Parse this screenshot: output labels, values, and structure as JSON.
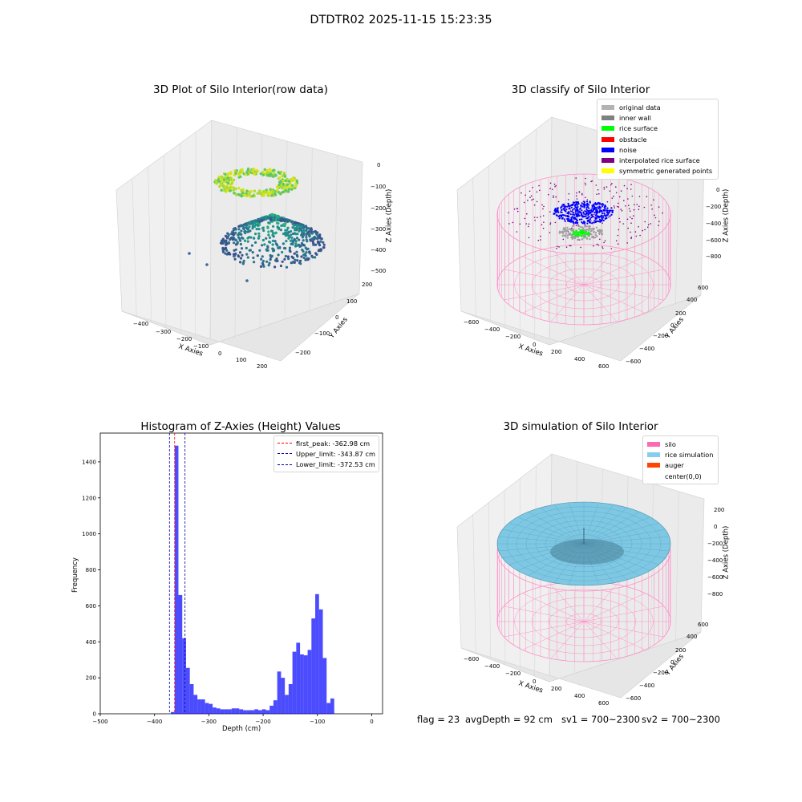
{
  "figure": {
    "suptitle": "DTDTR02 2025-11-15 15:23:35",
    "footer": {
      "flag": "flag = 23",
      "avg_depth": "avgDepth = 92 cm",
      "sv1": "sv1 = 700~2300",
      "sv2": "sv2 = 700~2300"
    }
  },
  "chart_data": [
    {
      "type": "scatter",
      "projection": "3d",
      "title": "3D Plot of Silo Interior(row data)",
      "xlabel": "X Axies",
      "ylabel": "Y Axies",
      "zlabel": "Z Axies (Depth)",
      "x_ticks": [
        "−400",
        "−300",
        "−200",
        "−100",
        "0",
        "100",
        "200"
      ],
      "y_ticks": [
        "−200",
        "−100",
        "0",
        "100",
        "200"
      ],
      "z_ticks": [
        "0",
        "−100",
        "−200",
        "−300",
        "−400",
        "−500"
      ],
      "xlim": [
        -450,
        230
      ],
      "ylim": [
        -230,
        230
      ],
      "zlim": [
        -520,
        10
      ],
      "colormap": "viridis",
      "grid": true
    },
    {
      "type": "scatter",
      "projection": "3d",
      "title": "3D classify of Silo Interior",
      "xlabel": "X Axies",
      "ylabel": "Y Axies",
      "zlabel": "Z Axies (Depth)",
      "x_ticks": [
        "−600",
        "−400",
        "−200",
        "0",
        "200",
        "400",
        "600"
      ],
      "y_ticks": [
        "−600",
        "−400",
        "−200",
        "0",
        "200",
        "400",
        "600"
      ],
      "z_ticks": [
        "0",
        "−200",
        "−400",
        "−600",
        "−800"
      ],
      "legend_position": "top-right",
      "legend": [
        {
          "label": "original data",
          "color": "#b3b3b3"
        },
        {
          "label": "inner wall",
          "color": "#808080"
        },
        {
          "label": "rice surface",
          "color": "#00ff00"
        },
        {
          "label": "obstacle",
          "color": "#ff0000"
        },
        {
          "label": "noise",
          "color": "#0000ff"
        },
        {
          "label": "interpolated rice surface",
          "color": "#800080"
        },
        {
          "label": "symmetric generated points",
          "color": "#ffff00"
        }
      ],
      "grid": true
    },
    {
      "type": "bar",
      "title": "Histogram of Z-Axies (Height) Values",
      "xlabel": "Depth (cm)",
      "ylabel": "Frequency",
      "xlim": [
        -500,
        20
      ],
      "ylim": [
        0,
        1560
      ],
      "x_ticks": [
        -500,
        -400,
        -300,
        -200,
        -100,
        0
      ],
      "x_tick_labels": [
        "−500",
        "−400",
        "−300",
        "−200",
        "−100",
        "0"
      ],
      "y_ticks": [
        0,
        200,
        400,
        600,
        800,
        1000,
        1200,
        1400
      ],
      "y_tick_labels": [
        "0",
        "200",
        "400",
        "600",
        "800",
        "1000",
        "1200",
        "1400"
      ],
      "bar_color": "#0000ff",
      "bins": [
        {
          "x0": -370,
          "x1": -363,
          "value": 10
        },
        {
          "x0": -363,
          "x1": -356,
          "value": 1490
        },
        {
          "x0": -356,
          "x1": -349,
          "value": 660
        },
        {
          "x0": -349,
          "x1": -342,
          "value": 420
        },
        {
          "x0": -342,
          "x1": -335,
          "value": 255
        },
        {
          "x0": -335,
          "x1": -328,
          "value": 165
        },
        {
          "x0": -328,
          "x1": -321,
          "value": 105
        },
        {
          "x0": -321,
          "x1": -314,
          "value": 80
        },
        {
          "x0": -314,
          "x1": -307,
          "value": 80
        },
        {
          "x0": -307,
          "x1": -300,
          "value": 60
        },
        {
          "x0": -300,
          "x1": -293,
          "value": 55
        },
        {
          "x0": -293,
          "x1": -286,
          "value": 35
        },
        {
          "x0": -286,
          "x1": -279,
          "value": 30
        },
        {
          "x0": -279,
          "x1": -272,
          "value": 25
        },
        {
          "x0": -272,
          "x1": -265,
          "value": 25
        },
        {
          "x0": -265,
          "x1": -258,
          "value": 25
        },
        {
          "x0": -258,
          "x1": -251,
          "value": 30
        },
        {
          "x0": -251,
          "x1": -244,
          "value": 30
        },
        {
          "x0": -244,
          "x1": -237,
          "value": 25
        },
        {
          "x0": -237,
          "x1": -230,
          "value": 20
        },
        {
          "x0": -230,
          "x1": -223,
          "value": 20
        },
        {
          "x0": -223,
          "x1": -216,
          "value": 20
        },
        {
          "x0": -216,
          "x1": -209,
          "value": 25
        },
        {
          "x0": -209,
          "x1": -202,
          "value": 20
        },
        {
          "x0": -202,
          "x1": -195,
          "value": 25
        },
        {
          "x0": -195,
          "x1": -188,
          "value": 20
        },
        {
          "x0": -188,
          "x1": -181,
          "value": 45
        },
        {
          "x0": -181,
          "x1": -174,
          "value": 75
        },
        {
          "x0": -174,
          "x1": -167,
          "value": 235
        },
        {
          "x0": -167,
          "x1": -160,
          "value": 200
        },
        {
          "x0": -160,
          "x1": -153,
          "value": 105
        },
        {
          "x0": -153,
          "x1": -146,
          "value": 165
        },
        {
          "x0": -146,
          "x1": -139,
          "value": 345
        },
        {
          "x0": -139,
          "x1": -132,
          "value": 395
        },
        {
          "x0": -132,
          "x1": -125,
          "value": 330
        },
        {
          "x0": -125,
          "x1": -118,
          "value": 325
        },
        {
          "x0": -118,
          "x1": -111,
          "value": 355
        },
        {
          "x0": -111,
          "x1": -104,
          "value": 530
        },
        {
          "x0": -104,
          "x1": -97,
          "value": 665
        },
        {
          "x0": -97,
          "x1": -90,
          "value": 580
        },
        {
          "x0": -90,
          "x1": -83,
          "value": 310
        },
        {
          "x0": -83,
          "x1": -76,
          "value": 60
        },
        {
          "x0": -76,
          "x1": -69,
          "value": 85
        }
      ],
      "vlines": [
        {
          "label": "first_peak: -362.98 cm",
          "x": -362.98,
          "color": "#ff0000"
        },
        {
          "label": "Upper_limit: -343.87 cm",
          "x": -343.87,
          "color": "#0000aa"
        },
        {
          "label": "Lower_limit: -372.53 cm",
          "x": -372.53,
          "color": "#0000aa"
        }
      ],
      "legend_position": "top-right"
    },
    {
      "type": "scatter",
      "projection": "3d",
      "title": "3D simulation of Silo Interior",
      "xlabel": "X Axies",
      "ylabel": "Y Axies",
      "zlabel": "Z Axies (Depth)",
      "x_ticks": [
        "−600",
        "−400",
        "−200",
        "0",
        "200",
        "400",
        "600"
      ],
      "y_ticks": [
        "−600",
        "−400",
        "−200",
        "0",
        "200",
        "400",
        "600"
      ],
      "z_ticks": [
        "200",
        "0",
        "−200",
        "−400",
        "−600",
        "−800"
      ],
      "legend_position": "top-right",
      "legend": [
        {
          "label": "silo",
          "color": "#ff69b4"
        },
        {
          "label": "rice simulation",
          "color": "#87ceeb"
        },
        {
          "label": "auger",
          "color": "#ff4500"
        },
        {
          "label": "center(0,0)",
          "color": "#ffffff"
        }
      ],
      "grid": true
    }
  ]
}
